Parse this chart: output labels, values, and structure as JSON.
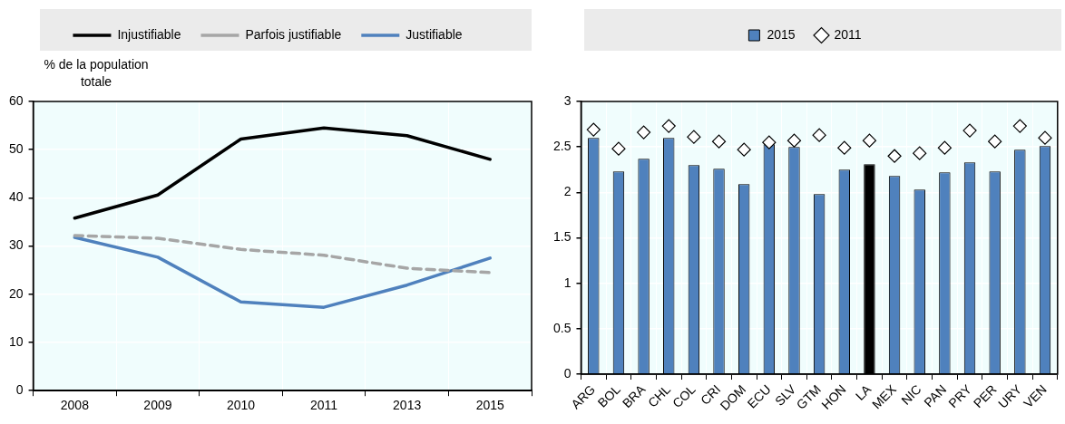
{
  "chart_data": [
    {
      "type": "line",
      "ylabel": "% de la population totale",
      "categories": [
        "2008",
        "2009",
        "2010",
        "2011",
        "2013",
        "2015"
      ],
      "series": [
        {
          "name": "Injustifiable",
          "color": "#000000",
          "values": [
            35.8,
            40.6,
            52.2,
            54.5,
            52.9,
            48.0
          ]
        },
        {
          "name": "Parfois justifiable",
          "color": "#a6a6a6",
          "line_style": "dashed",
          "values": [
            32.2,
            31.6,
            29.3,
            28.1,
            25.4,
            24.5
          ]
        },
        {
          "name": "Justifiable",
          "color": "#4f81bd",
          "values": [
            31.8,
            27.7,
            18.4,
            17.3,
            21.9,
            27.5
          ]
        }
      ],
      "ylim": [
        0,
        60
      ],
      "yticks": [
        0,
        10,
        20,
        30,
        40,
        50,
        60
      ],
      "grid": true,
      "legend": "top"
    },
    {
      "type": "bar",
      "categories": [
        "ARG",
        "BOL",
        "BRA",
        "CHL",
        "COL",
        "CRI",
        "DOM",
        "ECU",
        "SLV",
        "GTM",
        "HON",
        "LA",
        "MEX",
        "NIC",
        "PAN",
        "PRY",
        "PER",
        "URY",
        "VEN"
      ],
      "series": [
        {
          "name": "2015",
          "type": "bar",
          "color": "#4f81bd",
          "colors": [
            "#4f81bd",
            "#4f81bd",
            "#4f81bd",
            "#4f81bd",
            "#4f81bd",
            "#4f81bd",
            "#4f81bd",
            "#4f81bd",
            "#4f81bd",
            "#4f81bd",
            "#4f81bd",
            "#000000",
            "#4f81bd",
            "#4f81bd",
            "#4f81bd",
            "#4f81bd",
            "#4f81bd",
            "#4f81bd",
            "#4f81bd"
          ],
          "values": [
            2.6,
            2.23,
            2.37,
            2.6,
            2.3,
            2.26,
            2.09,
            2.53,
            2.5,
            1.98,
            2.25,
            2.31,
            2.18,
            2.03,
            2.22,
            2.33,
            2.23,
            2.47,
            2.51
          ]
        },
        {
          "name": "2011",
          "type": "scatter",
          "color": "#000000",
          "x": [
            "ARG",
            "BOL",
            "BRA",
            "CHL",
            "COL",
            "CRI",
            "DOM",
            "ECU",
            "SLV",
            "GTM",
            "HON",
            "LA",
            "MEX",
            "NIC",
            "PAN",
            "PRY",
            "PER",
            "URY",
            "VEN"
          ],
          "values": [
            2.69,
            2.48,
            2.66,
            2.73,
            2.61,
            2.56,
            2.47,
            2.55,
            2.57,
            2.63,
            2.49,
            2.57,
            2.4,
            2.43,
            2.49,
            2.68,
            2.56,
            2.73,
            2.6
          ]
        }
      ],
      "marker": "diamond",
      "ylim": [
        0,
        3
      ],
      "yticks": [
        0,
        0.5,
        1,
        1.5,
        2,
        2.5,
        3
      ],
      "grid": true,
      "legend": "top"
    }
  ]
}
